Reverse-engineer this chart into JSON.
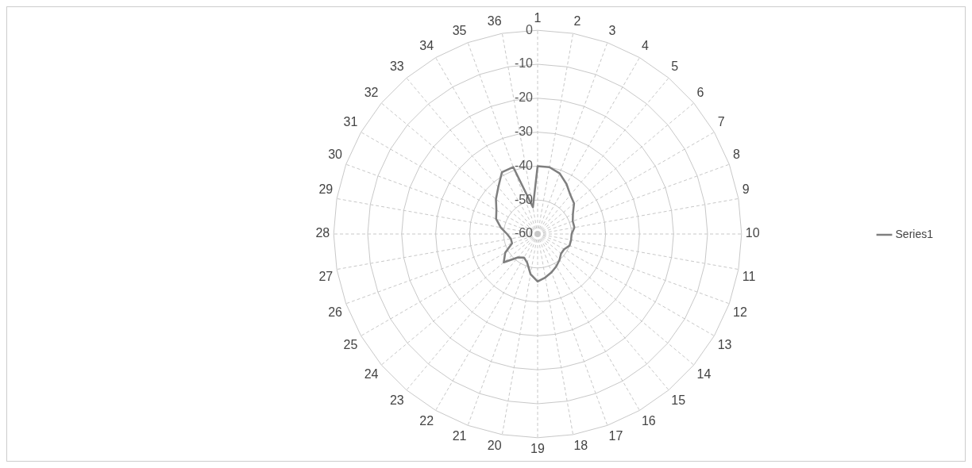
{
  "chart_data": {
    "type": "radar",
    "categories": [
      "1",
      "2",
      "3",
      "4",
      "5",
      "6",
      "7",
      "8",
      "9",
      "10",
      "11",
      "12",
      "13",
      "14",
      "15",
      "16",
      "17",
      "18",
      "19",
      "20",
      "21",
      "22",
      "23",
      "24",
      "25",
      "26",
      "27",
      "28",
      "29",
      "30",
      "31",
      "32",
      "33",
      "34",
      "35",
      "36"
    ],
    "series": [
      {
        "name": "Series1",
        "color": "#7f7f7f",
        "values": [
          -40,
          -40,
          -41,
          -43,
          -45,
          -46,
          -48,
          -49,
          -49,
          -50,
          -50,
          -50,
          -51,
          -51,
          -50,
          -49,
          -48,
          -47,
          -46,
          -48,
          -51,
          -52,
          -51,
          -47,
          -49,
          -52,
          -52,
          -51,
          -49,
          -47,
          -46,
          -44,
          -42,
          -39,
          -39,
          -52
        ]
      }
    ],
    "ylim": [
      -60,
      0
    ],
    "yticks": [
      -60,
      -50,
      -40,
      -30,
      -20,
      -10,
      0
    ],
    "grid": true,
    "legend": "right",
    "marker": "none",
    "line_style": "solid"
  }
}
